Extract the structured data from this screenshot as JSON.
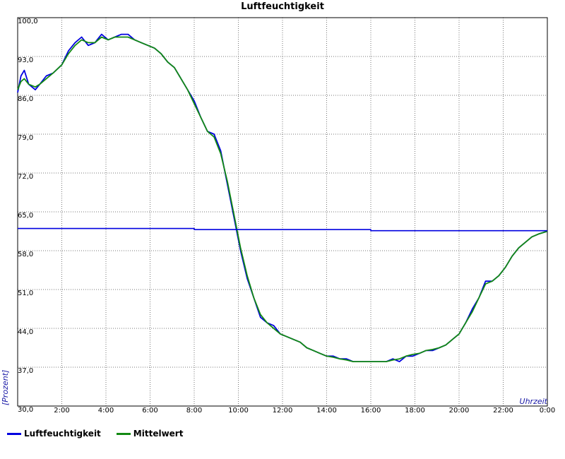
{
  "chart_data": {
    "type": "line",
    "title": "Luftfeuchtigkeit",
    "xlabel": "Uhrzeit",
    "ylabel": "[Prozent]",
    "ylim": [
      30,
      100
    ],
    "xlim": [
      0,
      24
    ],
    "yticks": [
      {
        "v": 100,
        "label": "100,0"
      },
      {
        "v": 93,
        "label": "93,0"
      },
      {
        "v": 86,
        "label": "86,0"
      },
      {
        "v": 79,
        "label": "79,0"
      },
      {
        "v": 72,
        "label": "72,0"
      },
      {
        "v": 65,
        "label": "65,0"
      },
      {
        "v": 58,
        "label": "58,0"
      },
      {
        "v": 51,
        "label": "51,0"
      },
      {
        "v": 44,
        "label": "44,0"
      },
      {
        "v": 37,
        "label": "37,0"
      },
      {
        "v": 30,
        "label": "30,0"
      }
    ],
    "xticks": [
      {
        "v": 2,
        "label": "2:00"
      },
      {
        "v": 4,
        "label": "4:00"
      },
      {
        "v": 6,
        "label": "6:00"
      },
      {
        "v": 8,
        "label": "8:00"
      },
      {
        "v": 10,
        "label": "10:00"
      },
      {
        "v": 12,
        "label": "12:00"
      },
      {
        "v": 14,
        "label": "14:00"
      },
      {
        "v": 16,
        "label": "16:00"
      },
      {
        "v": 18,
        "label": "18:00"
      },
      {
        "v": 20,
        "label": "20:00"
      },
      {
        "v": 22,
        "label": "22:00"
      },
      {
        "v": 24,
        "label": "0:00"
      }
    ],
    "grid": true,
    "legend_position": "bottom-left",
    "series": [
      {
        "name": "Luftfeuchtigkeit",
        "color": "#0000e0",
        "x": [
          0,
          0.15,
          0.3,
          0.5,
          0.8,
          1.0,
          1.3,
          1.6,
          2.0,
          2.3,
          2.6,
          2.9,
          3.2,
          3.5,
          3.8,
          4.1,
          4.4,
          4.7,
          5.0,
          5.3,
          5.6,
          5.9,
          6.2,
          6.5,
          6.8,
          7.1,
          7.4,
          7.7,
          8.0,
          8.3,
          8.6,
          8.9,
          9.2,
          9.5,
          9.8,
          10.1,
          10.4,
          10.7,
          11.0,
          11.3,
          11.6,
          11.9,
          12.2,
          12.5,
          12.8,
          13.1,
          13.4,
          13.7,
          14.0,
          14.3,
          14.6,
          14.9,
          15.2,
          15.5,
          15.8,
          16.1,
          16.4,
          16.7,
          17.0,
          17.3,
          17.6,
          17.9,
          18.2,
          18.5,
          18.8,
          19.1,
          19.4,
          19.7,
          20.0,
          20.3,
          20.6,
          20.9,
          21.2,
          21.5,
          21.8,
          22.1,
          22.4,
          22.7,
          23.0,
          23.3,
          23.6,
          24.0
        ],
        "y": [
          86.5,
          89.5,
          90.5,
          88.0,
          87.0,
          88.0,
          89.5,
          90.0,
          91.5,
          94.0,
          95.5,
          96.5,
          95.0,
          95.5,
          97.0,
          96.0,
          96.5,
          97.0,
          97.0,
          96.0,
          95.5,
          95.0,
          94.5,
          93.5,
          92.0,
          91.0,
          89.0,
          87.0,
          85.0,
          82.0,
          79.5,
          79.0,
          76.0,
          70.0,
          64.0,
          58.0,
          53.0,
          49.5,
          46.0,
          45.0,
          44.5,
          43.0,
          42.5,
          42.0,
          41.5,
          40.5,
          40.0,
          39.5,
          39.0,
          39.0,
          38.5,
          38.5,
          38.0,
          38.0,
          38.0,
          38.0,
          38.0,
          38.0,
          38.5,
          38.0,
          39.0,
          39.0,
          39.5,
          40.0,
          40.0,
          40.5,
          41.0,
          42.0,
          43.0,
          45.0,
          47.5,
          49.5,
          52.5,
          52.5,
          53.5,
          55.0,
          57.0,
          58.5,
          59.5,
          60.5,
          61.0,
          61.5
        ]
      },
      {
        "name": "Mittelwert",
        "color": "#138a13",
        "x": [
          0,
          0.15,
          0.3,
          0.5,
          0.8,
          1.0,
          1.3,
          1.6,
          2.0,
          2.3,
          2.6,
          2.9,
          3.2,
          3.5,
          3.8,
          4.1,
          4.4,
          4.7,
          5.0,
          5.3,
          5.6,
          5.9,
          6.2,
          6.5,
          6.8,
          7.1,
          7.4,
          7.7,
          8.0,
          8.3,
          8.6,
          8.9,
          9.2,
          9.5,
          9.8,
          10.1,
          10.4,
          10.7,
          11.0,
          11.3,
          11.6,
          11.9,
          12.2,
          12.5,
          12.8,
          13.1,
          13.4,
          13.7,
          14.0,
          14.3,
          14.6,
          14.9,
          15.2,
          15.5,
          15.8,
          16.1,
          16.4,
          16.7,
          17.0,
          17.3,
          17.6,
          17.9,
          18.2,
          18.5,
          18.8,
          19.1,
          19.4,
          19.7,
          20.0,
          20.3,
          20.6,
          20.9,
          21.2,
          21.5,
          21.8,
          22.1,
          22.4,
          22.7,
          23.0,
          23.3,
          23.6,
          24.0
        ],
        "y": [
          87.0,
          88.5,
          89.0,
          88.0,
          87.5,
          88.0,
          89.0,
          90.0,
          91.5,
          93.5,
          95.0,
          96.0,
          95.5,
          95.5,
          96.5,
          96.0,
          96.5,
          96.5,
          96.5,
          96.0,
          95.5,
          95.0,
          94.5,
          93.5,
          92.0,
          91.0,
          89.0,
          87.0,
          84.5,
          82.0,
          79.5,
          78.5,
          75.5,
          70.5,
          64.5,
          58.5,
          53.5,
          49.5,
          46.5,
          45.0,
          44.0,
          43.0,
          42.5,
          42.0,
          41.5,
          40.5,
          40.0,
          39.5,
          39.0,
          38.8,
          38.5,
          38.3,
          38.0,
          38.0,
          38.0,
          38.0,
          38.0,
          38.0,
          38.3,
          38.5,
          39.0,
          39.3,
          39.5,
          40.0,
          40.2,
          40.5,
          41.0,
          42.0,
          43.0,
          45.0,
          47.0,
          49.5,
          52.0,
          52.5,
          53.5,
          55.0,
          57.0,
          58.5,
          59.5,
          60.5,
          61.0,
          61.5
        ]
      },
      {
        "x": [
          0,
          8,
          8,
          16,
          16,
          24
        ],
        "y": [
          62.0,
          62.0,
          61.8,
          61.8,
          61.6,
          61.6
        ]
      }
    ]
  },
  "legend": [
    {
      "label": "Luftfeuchtigkeit",
      "color": "#0000e0"
    },
    {
      "label": "Mittelwert",
      "color": "#138a13"
    }
  ]
}
